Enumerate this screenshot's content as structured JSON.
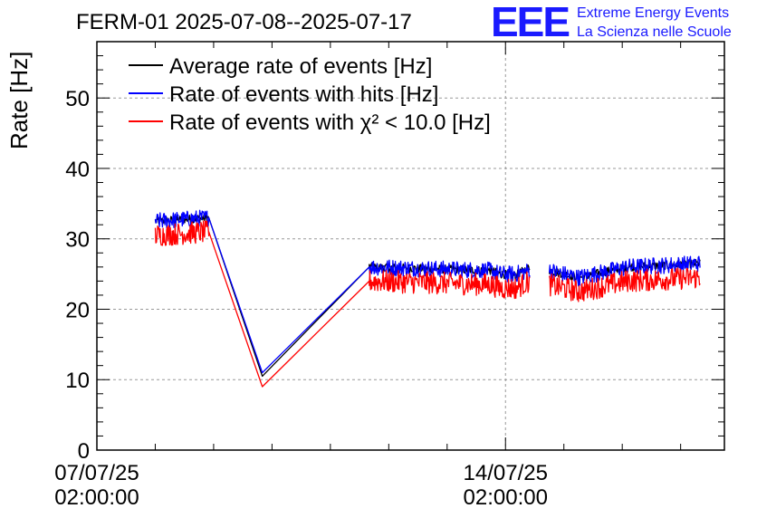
{
  "chart_data": {
    "type": "line",
    "title": "FERM-01 2025-07-08--2025-07-17",
    "ylabel": "Rate [Hz]",
    "xlabel": "",
    "ylim": [
      0,
      58
    ],
    "yticks": [
      0,
      10,
      20,
      30,
      40,
      50
    ],
    "xlim": [
      "2025-07-07 02:00:00",
      "2025-07-17 20:00:00"
    ],
    "xticks": [
      {
        "value": "2025-07-07 02:00:00",
        "line1": "07/07/25",
        "line2": "02:00:00"
      },
      {
        "value": "2025-07-14 02:00:00",
        "line1": "14/07/25",
        "line2": "02:00:00"
      }
    ],
    "grid": true,
    "legend_position": "top-left",
    "series": [
      {
        "name": "Average rate of events [Hz]",
        "color": "#000000",
        "noise": 0.6,
        "segments": [
          {
            "x": [
              "2025-07-08 02:00:00",
              "2025-07-09 00:00:00",
              "2025-07-09 22:00:00",
              "2025-07-11 18:00:00",
              "2025-07-13 20:00:00",
              "2025-07-14 00:00:00",
              "2025-07-14 06:00:00",
              "2025-07-14 12:00:00"
            ],
            "y": [
              32.5,
              33.0,
              10.5,
              26.0,
              25.5,
              25.0,
              24.8,
              26.0
            ]
          },
          {
            "x": [
              "2025-07-14 20:00:00",
              "2025-07-15 08:00:00",
              "2025-07-16 04:00:00",
              "2025-07-17 10:00:00"
            ],
            "y": [
              25.5,
              24.5,
              26.0,
              26.5
            ]
          }
        ]
      },
      {
        "name": "Rate of events with hits [Hz]",
        "color": "#0000ff",
        "noise": 1.2,
        "segments": [
          {
            "x": [
              "2025-07-08 02:00:00",
              "2025-07-09 00:00:00",
              "2025-07-09 22:00:00",
              "2025-07-11 18:00:00",
              "2025-07-13 20:00:00",
              "2025-07-14 00:00:00",
              "2025-07-14 06:00:00",
              "2025-07-14 12:00:00"
            ],
            "y": [
              32.5,
              33.0,
              11.0,
              26.0,
              25.5,
              25.0,
              25.0,
              25.5
            ]
          },
          {
            "x": [
              "2025-07-14 20:00:00",
              "2025-07-15 08:00:00",
              "2025-07-16 04:00:00",
              "2025-07-17 10:00:00"
            ],
            "y": [
              25.5,
              24.5,
              26.0,
              26.5
            ]
          }
        ]
      },
      {
        "name": "Rate of events with χ² < 10.0 [Hz]",
        "color": "#ff0000",
        "noise": 1.6,
        "segments": [
          {
            "x": [
              "2025-07-08 02:00:00",
              "2025-07-09 00:00:00",
              "2025-07-09 22:00:00",
              "2025-07-11 18:00:00",
              "2025-07-13 20:00:00",
              "2025-07-14 00:00:00",
              "2025-07-14 06:00:00",
              "2025-07-14 12:00:00"
            ],
            "y": [
              30.5,
              31.0,
              9.0,
              24.0,
              23.5,
              23.0,
              23.0,
              24.0
            ]
          },
          {
            "x": [
              "2025-07-14 20:00:00",
              "2025-07-15 08:00:00",
              "2025-07-16 04:00:00",
              "2025-07-17 10:00:00"
            ],
            "y": [
              23.5,
              22.5,
              24.0,
              24.5
            ]
          }
        ]
      }
    ]
  },
  "logo": {
    "mark": "EEE",
    "line1": "Extreme Energy Events",
    "line2": "La Scienza nelle Scuole"
  }
}
